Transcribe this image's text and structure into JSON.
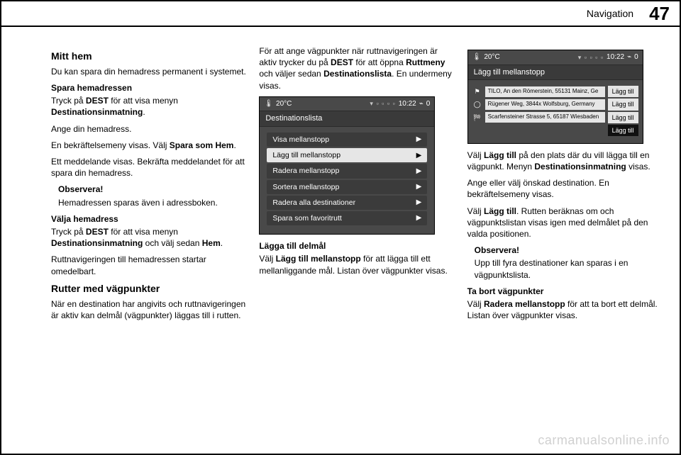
{
  "header": {
    "chapter": "Navigation",
    "page": "47"
  },
  "watermark": "carmanualsonline.info",
  "col1": {
    "title": "Mitt hem",
    "p1": "Du kan spara din hemadress perma­nent i systemet.",
    "h_save": "Spara hemadressen",
    "p2a": "Tryck på ",
    "p2b": "DEST",
    "p2c": " för att visa menyn ",
    "p2d": "Destinationsinmatning",
    "p2e": ".",
    "p3": "Ange din hemadress.",
    "p4a": "En bekräftelsemeny visas. Välj ",
    "p4b": "Spara som Hem",
    "p4c": ".",
    "p5": "Ett meddelande visas. Bekräfta med­delandet för att spara din hemadress.",
    "note_h": "Observera!",
    "note_p": "Hemadressen sparas även i adress­boken.",
    "h_choose": "Välja hemadress",
    "p6a": "Tryck på ",
    "p6b": "DEST",
    "p6c": " för att visa menyn ",
    "p6d": "Destinationsinmatning",
    "p6e": " och välj sedan ",
    "p6f": "Hem",
    "p6g": ".",
    "p7": "Ruttnavigeringen till hemadressen startar omedelbart.",
    "h_routes": "Rutter med vägpunkter",
    "p8": "När en destination har angivits och ruttnavigeringen är aktiv kan delmål (vägpunkter) läggas till i rutten."
  },
  "col2": {
    "p1a": "För att ange vägpunkter när ruttnavi­geringen är aktiv trycker du på ",
    "p1b": "DEST",
    "p1c": " för att öppna ",
    "p1d": "Ruttmeny",
    "p1e": " och väl­jer sedan ",
    "p1f": "Destinationslista",
    "p1g": ". En under­meny visas.",
    "h_add": "Lägga till delmål",
    "p2a": "Välj ",
    "p2b": "Lägg till mellanstopp",
    "p2c": " för att lägga till ett mellanliggande mål. Listan över vägpunkter visas."
  },
  "col3": {
    "p1a": "Välj ",
    "p1b": "Lägg till",
    "p1c": " på den plats där du vill lägga till en vägpunkt. Menyn ",
    "p1d": "Desti­nationsinmatning",
    "p1e": " visas.",
    "p2": "Ange eller välj önskad destination. En bekräftelsemeny visas.",
    "p3a": "Välj ",
    "p3b": "Lägg till",
    "p3c": ". Rutten beräknas om och vägpunktslistan visas igen med del­målet på den valda positionen.",
    "note_h": "Observera!",
    "note_p": "Upp till fyra destinationer kan sparas i en vägpunktslista.",
    "h_remove": "Ta bort vägpunkter",
    "p4a": "Välj ",
    "p4b": "Radera mellanstopp",
    "p4c": " för att ta bort ett delmål. Listan över vägpunkter visas."
  },
  "shot1": {
    "temp": "20°C",
    "time": "10:22",
    "bt": "0",
    "title": "Destinationslista",
    "rows": [
      "Visa mellanstopp",
      "Lägg till mellanstopp",
      "Radera mellanstopp",
      "Sortera mellanstopp",
      "Radera alla destinationer",
      "Spara som favoritrutt"
    ],
    "selected_index": 1
  },
  "shot2": {
    "temp": "20°C",
    "time": "10:22",
    "bt": "0",
    "title": "Lägg till mellanstopp",
    "btn_label": "Lägg till",
    "waypoints": [
      "TILO, An den Römerstein, 55131 Mainz, Ge",
      "Rügener Weg, 3844x Wolfsburg, Germany",
      "Scarfensteiner Strasse 5, 65187 Wiesbaden"
    ],
    "selected_btn_index": 3
  },
  "style": {
    "colors": {
      "page_border": "#000000",
      "text": "#000000",
      "nav_bg": "#494949",
      "nav_row": "#3b3b3b",
      "nav_sel_bg": "#e6e6e6",
      "nav_sel_text": "#000000",
      "nav_title_bg": "#3a3a3a",
      "watermark": "#aaaaaa"
    },
    "font_sizes": {
      "body": 12,
      "h2": 14,
      "h3": 12,
      "nav": 10,
      "header_page": 26,
      "header_chap": 14
    }
  }
}
